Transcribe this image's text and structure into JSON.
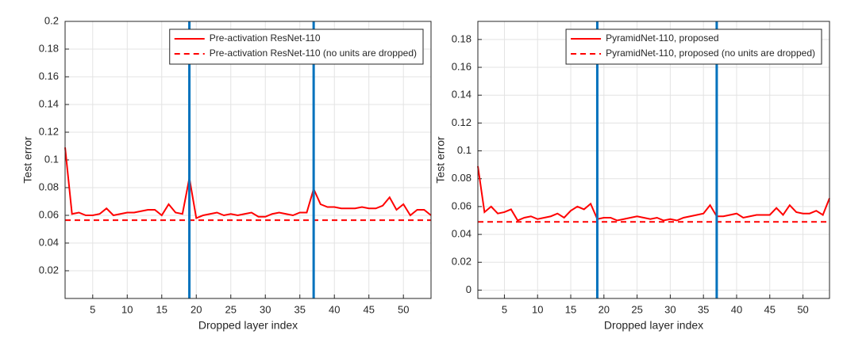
{
  "chart_data": [
    {
      "type": "line",
      "x_label": "Dropped layer index",
      "y_label": "Test error",
      "x": [
        1,
        2,
        3,
        4,
        5,
        6,
        7,
        8,
        9,
        10,
        11,
        12,
        13,
        14,
        15,
        16,
        17,
        18,
        19,
        20,
        21,
        22,
        23,
        24,
        25,
        26,
        27,
        28,
        29,
        30,
        31,
        32,
        33,
        34,
        35,
        36,
        37,
        38,
        39,
        40,
        41,
        42,
        43,
        44,
        45,
        46,
        47,
        48,
        49,
        50,
        51,
        52,
        53,
        54
      ],
      "series": [
        {
          "name": "Pre-activation ResNet-110",
          "color": "#ff0000",
          "style": "solid",
          "values": [
            0.109,
            0.061,
            0.062,
            0.06,
            0.06,
            0.061,
            0.065,
            0.06,
            0.061,
            0.062,
            0.062,
            0.063,
            0.064,
            0.064,
            0.06,
            0.068,
            0.062,
            0.061,
            0.087,
            0.058,
            0.06,
            0.061,
            0.062,
            0.06,
            0.061,
            0.06,
            0.061,
            0.062,
            0.059,
            0.059,
            0.061,
            0.062,
            0.061,
            0.06,
            0.062,
            0.062,
            0.079,
            0.068,
            0.066,
            0.066,
            0.065,
            0.065,
            0.065,
            0.066,
            0.065,
            0.065,
            0.067,
            0.073,
            0.064,
            0.068,
            0.06,
            0.064,
            0.064,
            0.06
          ]
        },
        {
          "name": "Pre-activation ResNet-110 (no units are dropped)",
          "color": "#ff0000",
          "style": "dashed",
          "x": [
            1,
            54
          ],
          "values": [
            0.0565,
            0.0565
          ]
        }
      ],
      "vlines": [
        19,
        37
      ],
      "vline_color": "#0072bd",
      "xlim": [
        1,
        54
      ],
      "xticks": [
        5,
        10,
        15,
        20,
        25,
        30,
        35,
        40,
        45,
        50
      ],
      "ylim": [
        0,
        0.2
      ],
      "yticks": [
        0.02,
        0.04,
        0.06,
        0.08,
        0.1,
        0.12,
        0.14,
        0.16,
        0.18,
        0.2
      ],
      "grid": true,
      "legend": "upper right"
    },
    {
      "type": "line",
      "x_label": "Dropped layer index",
      "y_label": "Test error",
      "x": [
        1,
        2,
        3,
        4,
        5,
        6,
        7,
        8,
        9,
        10,
        11,
        12,
        13,
        14,
        15,
        16,
        17,
        18,
        19,
        20,
        21,
        22,
        23,
        24,
        25,
        26,
        27,
        28,
        29,
        30,
        31,
        32,
        33,
        34,
        35,
        36,
        37,
        38,
        39,
        40,
        41,
        42,
        43,
        44,
        45,
        46,
        47,
        48,
        49,
        50,
        51,
        52,
        53,
        54
      ],
      "series": [
        {
          "name": "PyramidNet-110, proposed",
          "color": "#ff0000",
          "style": "solid",
          "values": [
            0.089,
            0.056,
            0.06,
            0.055,
            0.056,
            0.058,
            0.05,
            0.052,
            0.053,
            0.051,
            0.052,
            0.053,
            0.055,
            0.052,
            0.057,
            0.06,
            0.058,
            0.062,
            0.051,
            0.052,
            0.052,
            0.05,
            0.051,
            0.052,
            0.053,
            0.052,
            0.051,
            0.052,
            0.05,
            0.051,
            0.05,
            0.052,
            0.053,
            0.054,
            0.055,
            0.061,
            0.053,
            0.053,
            0.054,
            0.055,
            0.052,
            0.053,
            0.054,
            0.054,
            0.054,
            0.059,
            0.054,
            0.061,
            0.056,
            0.055,
            0.055,
            0.057,
            0.054,
            0.066
          ]
        },
        {
          "name": "PyramidNet-110, proposed (no units are dropped)",
          "color": "#ff0000",
          "style": "dashed",
          "x": [
            1,
            54
          ],
          "values": [
            0.049,
            0.049
          ]
        }
      ],
      "vlines": [
        19,
        37
      ],
      "vline_color": "#0072bd",
      "xlim": [
        1,
        54
      ],
      "xticks": [
        5,
        10,
        15,
        20,
        25,
        30,
        35,
        40,
        45,
        50
      ],
      "ylim": [
        -0.006,
        0.193
      ],
      "yticks": [
        0,
        0.02,
        0.04,
        0.06,
        0.08,
        0.1,
        0.12,
        0.14,
        0.16,
        0.18
      ],
      "grid": true,
      "legend": "upper right"
    }
  ]
}
